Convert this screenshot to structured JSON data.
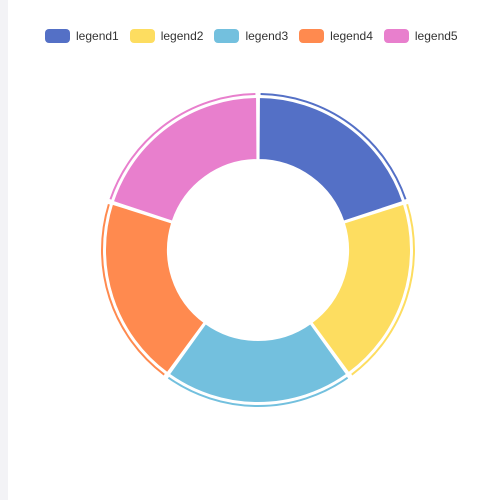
{
  "chart_data": {
    "type": "pie",
    "variant": "donut",
    "title": "",
    "legend_position": "top-center",
    "categories": [
      "legend1",
      "legend2",
      "legend3",
      "legend4",
      "legend5"
    ],
    "values": [
      1,
      1,
      1,
      1,
      1
    ],
    "colors": [
      "#5470c6",
      "#fddd60",
      "#73c0de",
      "#ff8a4f",
      "#e87fcd"
    ]
  },
  "legend": {
    "items": [
      {
        "label": "legend1",
        "color": "#5470c6"
      },
      {
        "label": "legend2",
        "color": "#fddd60"
      },
      {
        "label": "legend3",
        "color": "#73c0de"
      },
      {
        "label": "legend4",
        "color": "#ff8a4f"
      },
      {
        "label": "legend5",
        "color": "#e87fcd"
      }
    ]
  }
}
